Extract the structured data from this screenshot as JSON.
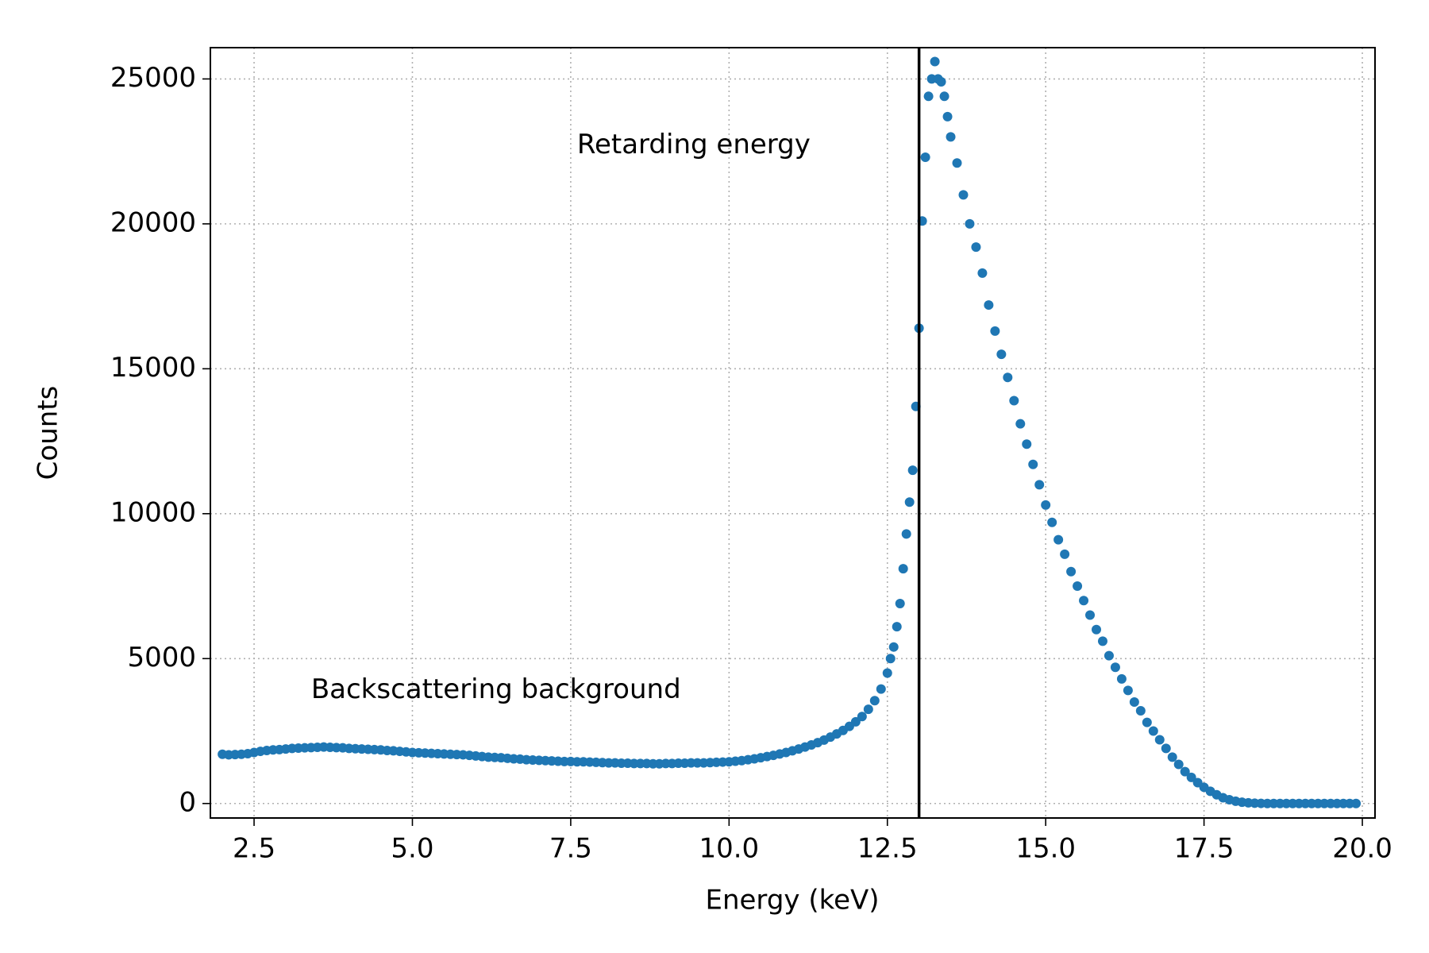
{
  "chart_data": {
    "type": "scatter",
    "x_label": "Energy (keV)",
    "y_label": "Counts",
    "xlim": [
      1.81,
      20.2
    ],
    "ylim": [
      -500,
      26080
    ],
    "xticks": [
      2.5,
      {
        "value": 5,
        "label": "5.0"
      },
      7.5,
      {
        "value": 10,
        "label": "10.0"
      },
      12.5,
      {
        "value": 15,
        "label": "15.0"
      },
      17.5,
      {
        "value": 20,
        "label": "20.0"
      }
    ],
    "yticks": [
      0,
      5000,
      10000,
      15000,
      20000,
      25000
    ],
    "grid": true,
    "vline": 13.0,
    "vline_color": "#000000",
    "annotations": [
      {
        "text": "Retarding energy",
        "x": 7.6,
        "y": 22700
      },
      {
        "text": "Backscattering background",
        "x": 3.4,
        "y": 3900
      }
    ],
    "series": [
      {
        "color": "#1f77b4",
        "x": [
          2.0,
          2.1,
          2.2,
          2.3,
          2.4,
          2.5,
          2.6,
          2.7,
          2.8,
          2.9,
          3.0,
          3.1,
          3.2,
          3.3,
          3.4,
          3.5,
          3.6,
          3.7,
          3.8,
          3.9,
          4.0,
          4.1,
          4.2,
          4.3,
          4.4,
          4.5,
          4.6,
          4.7,
          4.8,
          4.9,
          5.0,
          5.1,
          5.2,
          5.3,
          5.4,
          5.5,
          5.6,
          5.7,
          5.8,
          5.9,
          6.0,
          6.1,
          6.2,
          6.3,
          6.4,
          6.5,
          6.6,
          6.7,
          6.8,
          6.9,
          7.0,
          7.1,
          7.2,
          7.3,
          7.4,
          7.5,
          7.6,
          7.7,
          7.8,
          7.9,
          8.0,
          8.1,
          8.2,
          8.3,
          8.4,
          8.5,
          8.6,
          8.7,
          8.8,
          8.9,
          9.0,
          9.1,
          9.2,
          9.3,
          9.4,
          9.5,
          9.6,
          9.7,
          9.8,
          9.9,
          10.0,
          10.1,
          10.2,
          10.3,
          10.4,
          10.5,
          10.6,
          10.7,
          10.8,
          10.9,
          11.0,
          11.1,
          11.2,
          11.3,
          11.4,
          11.5,
          11.6,
          11.7,
          11.8,
          11.9,
          12.0,
          12.1,
          12.2,
          12.3,
          12.4,
          12.5,
          12.55,
          12.6,
          12.65,
          12.7,
          12.75,
          12.8,
          12.85,
          12.9,
          12.95,
          13.0,
          13.05,
          13.1,
          13.15,
          13.2,
          13.25,
          13.3,
          13.35,
          13.4,
          13.45,
          13.5,
          13.6,
          13.7,
          13.8,
          13.9,
          14.0,
          14.1,
          14.2,
          14.3,
          14.4,
          14.5,
          14.6,
          14.7,
          14.8,
          14.9,
          15.0,
          15.1,
          15.2,
          15.3,
          15.4,
          15.5,
          15.6,
          15.7,
          15.8,
          15.9,
          16.0,
          16.1,
          16.2,
          16.3,
          16.4,
          16.5,
          16.6,
          16.7,
          16.8,
          16.9,
          17.0,
          17.1,
          17.2,
          17.3,
          17.4,
          17.5,
          17.6,
          17.7,
          17.8,
          17.9,
          18.0,
          18.1,
          18.2,
          18.3,
          18.4,
          18.5,
          18.6,
          18.7,
          18.8,
          18.9,
          19.0,
          19.1,
          19.2,
          19.3,
          19.4,
          19.5,
          19.6,
          19.7,
          19.8,
          19.9
        ],
        "values": [
          1700,
          1680,
          1690,
          1700,
          1720,
          1760,
          1800,
          1830,
          1850,
          1860,
          1880,
          1900,
          1910,
          1920,
          1930,
          1940,
          1950,
          1940,
          1930,
          1920,
          1900,
          1890,
          1880,
          1870,
          1860,
          1850,
          1830,
          1820,
          1800,
          1780,
          1760,
          1750,
          1740,
          1730,
          1720,
          1710,
          1700,
          1690,
          1680,
          1660,
          1640,
          1620,
          1600,
          1590,
          1580,
          1560,
          1540,
          1530,
          1510,
          1500,
          1490,
          1480,
          1470,
          1460,
          1450,
          1450,
          1440,
          1440,
          1430,
          1420,
          1410,
          1400,
          1400,
          1390,
          1390,
          1380,
          1380,
          1380,
          1370,
          1370,
          1380,
          1380,
          1390,
          1390,
          1400,
          1400,
          1400,
          1410,
          1420,
          1430,
          1440,
          1460,
          1480,
          1510,
          1540,
          1580,
          1620,
          1660,
          1710,
          1760,
          1820,
          1880,
          1950,
          2020,
          2100,
          2190,
          2290,
          2400,
          2520,
          2660,
          2820,
          3000,
          3250,
          3550,
          3950,
          4500,
          5000,
          5400,
          6100,
          6900,
          8100,
          9300,
          10400,
          11500,
          13700,
          16400,
          20100,
          22300,
          24400,
          25000,
          25600,
          25000,
          24900,
          24400,
          23700,
          23000,
          22100,
          21000,
          20000,
          19200,
          18300,
          17200,
          16300,
          15500,
          14700,
          13900,
          13100,
          12400,
          11700,
          11000,
          10300,
          9700,
          9100,
          8600,
          8000,
          7500,
          7000,
          6500,
          6000,
          5600,
          5100,
          4700,
          4300,
          3900,
          3500,
          3200,
          2800,
          2500,
          2200,
          1900,
          1600,
          1350,
          1100,
          900,
          720,
          560,
          420,
          300,
          200,
          130,
          80,
          45,
          25,
          12,
          5,
          0,
          0,
          0,
          0,
          0,
          0,
          0,
          0,
          0,
          0,
          0,
          0,
          0,
          0,
          0
        ]
      }
    ]
  }
}
